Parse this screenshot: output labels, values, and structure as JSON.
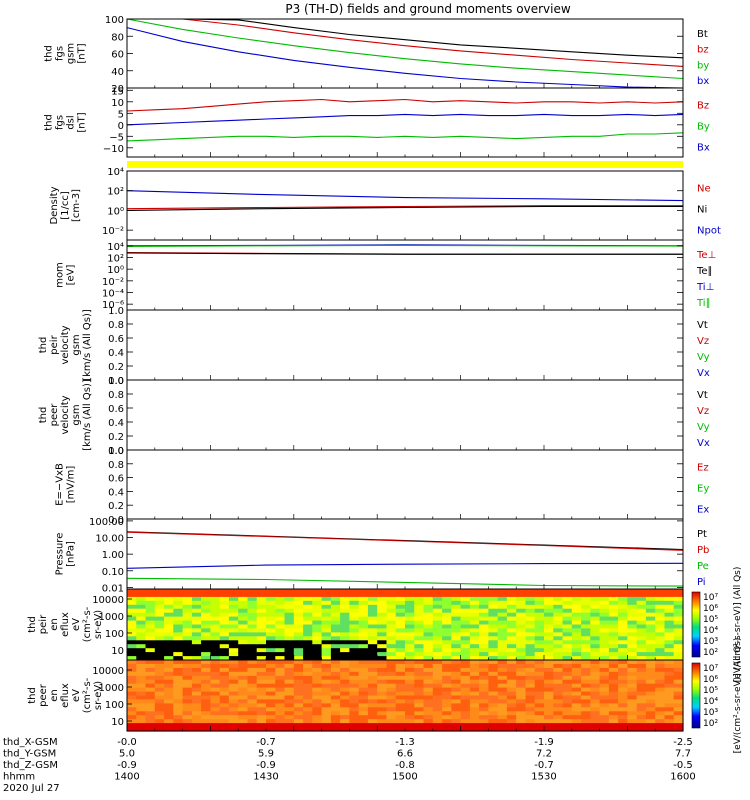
{
  "title": "P3 (TH-D) fields and ground moments overview",
  "chart_data": {
    "type": "line",
    "title": "P3 (TH-D) fields and ground moments overview",
    "panels": [
      {
        "id": "fgs-gsm",
        "ylabel": [
          "thd",
          "fgs",
          "gsm",
          "[nT]"
        ],
        "ylim": [
          20,
          100
        ],
        "yscale": "linear",
        "yticks": [
          "100",
          "80",
          "60",
          "40",
          "20"
        ],
        "legend": [
          {
            "label": "Bt",
            "color": "#000000"
          },
          {
            "label": "bz",
            "color": "#cc0000"
          },
          {
            "label": "by",
            "color": "#00bb00"
          },
          {
            "label": "bx",
            "color": "#0000cc"
          }
        ],
        "series": [
          {
            "color": "#000000",
            "x": [
              1400,
              1420,
              1440,
              1460,
              1480,
              1500,
              1520,
              1540,
              1560,
              1580,
              1600
            ],
            "y": [
              122,
              110,
              99,
              90,
              82,
              76,
              70,
              66,
              62,
              58,
              55
            ]
          },
          {
            "color": "#cc0000",
            "x": [
              1400,
              1420,
              1440,
              1460,
              1480,
              1500,
              1520,
              1540,
              1560,
              1580,
              1600
            ],
            "y": [
              116,
              104,
              93,
              84,
              76,
              69,
              63,
              58,
              53,
              49,
              45
            ]
          },
          {
            "color": "#00bb00",
            "x": [
              1400,
              1420,
              1440,
              1460,
              1480,
              1500,
              1520,
              1540,
              1560,
              1580,
              1600
            ],
            "y": [
              100,
              88,
              78,
              69,
              61,
              54,
              48,
              43,
              39,
              35,
              31
            ]
          },
          {
            "color": "#0000cc",
            "x": [
              1400,
              1420,
              1440,
              1460,
              1480,
              1500,
              1520,
              1540,
              1560,
              1580,
              1600
            ],
            "y": [
              90,
              74,
              62,
              52,
              44,
              37,
              31,
              27,
              24,
              21,
              19
            ]
          }
        ]
      },
      {
        "id": "fgs-dsl",
        "ylabel": [
          "thd",
          "fgs",
          "dsl",
          "[nT]"
        ],
        "ylim": [
          -14,
          16
        ],
        "yscale": "linear",
        "yticks": [
          "15",
          "10",
          "5",
          "0",
          "−5",
          "−10"
        ],
        "legend": [
          {
            "label": "Bz",
            "color": "#cc0000"
          },
          {
            "label": "By",
            "color": "#00bb00"
          },
          {
            "label": "Bx",
            "color": "#0000cc"
          }
        ],
        "series": [
          {
            "color": "#cc0000",
            "x": [
              1400,
              1410,
              1420,
              1430,
              1440,
              1450,
              1460,
              1470,
              1480,
              1490,
              1500,
              1510,
              1520,
              1530,
              1540,
              1550,
              1560,
              1570,
              1580,
              1590,
              1600
            ],
            "y": [
              6,
              6.5,
              7,
              8,
              9,
              10,
              10.5,
              11,
              10,
              10.5,
              11,
              10,
              10.5,
              10,
              9.5,
              10,
              10,
              9.5,
              10,
              9.5,
              10
            ]
          },
          {
            "color": "#0000cc",
            "x": [
              1400,
              1410,
              1420,
              1430,
              1440,
              1450,
              1460,
              1470,
              1480,
              1490,
              1500,
              1510,
              1520,
              1530,
              1540,
              1550,
              1560,
              1570,
              1580,
              1590,
              1600
            ],
            "y": [
              0,
              0.5,
              1,
              1.5,
              2,
              2.5,
              3,
              3.5,
              4,
              4,
              4.5,
              4,
              4.5,
              4,
              4,
              4.5,
              4,
              4,
              4.5,
              4,
              4.5
            ]
          },
          {
            "color": "#00bb00",
            "x": [
              1400,
              1410,
              1420,
              1430,
              1440,
              1450,
              1460,
              1470,
              1480,
              1490,
              1500,
              1510,
              1520,
              1530,
              1540,
              1550,
              1560,
              1570,
              1580,
              1590,
              1600
            ],
            "y": [
              -7,
              -6.5,
              -6,
              -5.5,
              -5,
              -5,
              -5.5,
              -5,
              -5,
              -5.5,
              -5,
              -5.5,
              -5,
              -5.5,
              -6,
              -5.5,
              -5,
              -5,
              -4,
              -4,
              -3.5
            ]
          }
        ]
      },
      {
        "id": "density",
        "ylabel": [
          "Density",
          "[1/cc]",
          "[cm-3]"
        ],
        "ylim": [
          0.001,
          10000
        ],
        "yscale": "log",
        "yticks": [
          "10⁴",
          "10²",
          "10⁰",
          "10⁻²"
        ],
        "legend": [
          {
            "label": "Ne",
            "color": "#cc0000"
          },
          {
            "label": "Ni",
            "color": "#000000"
          },
          {
            "label": "Npot",
            "color": "#0000cc"
          }
        ],
        "series": [
          {
            "color": "#0000cc",
            "x": [
              1400,
              1450,
              1500,
              1550,
              1600
            ],
            "y": [
              100,
              40,
              20,
              15,
              10
            ]
          },
          {
            "color": "#cc0000",
            "x": [
              1400,
              1450,
              1500,
              1550,
              1600
            ],
            "y": [
              1.5,
              2,
              2.5,
              3,
              3
            ]
          },
          {
            "color": "#000000",
            "x": [
              1400,
              1450,
              1500,
              1550,
              1600
            ],
            "y": [
              1,
              1.5,
              2,
              2.5,
              2.5
            ]
          }
        ]
      },
      {
        "id": "temperature",
        "ylabel": [
          "mom",
          "[eV]"
        ],
        "ylim": [
          1e-07,
          100000
        ],
        "yscale": "log",
        "yticks": [
          "10⁴",
          "10²",
          "10⁰",
          "10⁻²",
          "10⁻⁴",
          "10⁻⁶"
        ],
        "legend": [
          {
            "label": "Te⊥",
            "color": "#cc0000"
          },
          {
            "label": "Te∥",
            "color": "#000000"
          },
          {
            "label": "Ti⊥",
            "color": "#0000cc"
          },
          {
            "label": "Ti∥",
            "color": "#00bb00"
          }
        ],
        "series": [
          {
            "color": "#0000cc",
            "x": [
              1400,
              1450,
              1500,
              1550,
              1600
            ],
            "y": [
              10000,
              12000,
              15000,
              12000,
              10000
            ]
          },
          {
            "color": "#00bb00",
            "x": [
              1400,
              1450,
              1500,
              1550,
              1600
            ],
            "y": [
              8000,
              10000,
              12000,
              10000,
              9000
            ]
          },
          {
            "color": "#cc0000",
            "x": [
              1400,
              1450,
              1500,
              1550,
              1600
            ],
            "y": [
              700,
              500,
              400,
              400,
              400
            ]
          },
          {
            "color": "#000000",
            "x": [
              1400,
              1450,
              1500,
              1550,
              1600
            ],
            "y": [
              600,
              450,
              350,
              350,
              350
            ]
          }
        ]
      },
      {
        "id": "peir-velocity",
        "ylabel": [
          "thd",
          "peir",
          "velocity",
          "gsm",
          "[km/s (All Qs)]"
        ],
        "ylim": [
          0,
          1
        ],
        "yscale": "linear",
        "yticks": [
          "1.0",
          "0.8",
          "0.6",
          "0.4",
          "0.2",
          "0.0"
        ],
        "legend": [
          {
            "label": "Vt",
            "color": "#000000"
          },
          {
            "label": "Vz",
            "color": "#cc0000"
          },
          {
            "label": "Vy",
            "color": "#00bb00"
          },
          {
            "label": "Vx",
            "color": "#0000cc"
          }
        ],
        "series": []
      },
      {
        "id": "peer-velocity",
        "ylabel": [
          "thd",
          "peer",
          "velocity",
          "gsm",
          "[km/s (All Qs)]"
        ],
        "ylim": [
          0,
          1
        ],
        "yscale": "linear",
        "yticks": [
          "1.0",
          "0.8",
          "0.6",
          "0.4",
          "0.2",
          "0.0"
        ],
        "legend": [
          {
            "label": "Vt",
            "color": "#000000"
          },
          {
            "label": "Vz",
            "color": "#cc0000"
          },
          {
            "label": "Vy",
            "color": "#00bb00"
          },
          {
            "label": "Vx",
            "color": "#0000cc"
          }
        ],
        "series": []
      },
      {
        "id": "efield",
        "ylabel": [
          "E=−VxB",
          "[mV/m]"
        ],
        "ylim": [
          0,
          1
        ],
        "yscale": "linear",
        "yticks": [
          "1.0",
          "0.8",
          "0.6",
          "0.4",
          "0.2",
          "0.0"
        ],
        "legend": [
          {
            "label": "Ez",
            "color": "#cc0000"
          },
          {
            "label": "Ey",
            "color": "#00bb00"
          },
          {
            "label": "Ex",
            "color": "#0000cc"
          }
        ],
        "series": []
      },
      {
        "id": "pressure",
        "ylabel": [
          "Pressure",
          "[nPa]"
        ],
        "ylim": [
          0.008,
          130
        ],
        "yscale": "log",
        "yticks": [
          "100.00",
          "10.00",
          "1.00",
          "0.10",
          "0.01"
        ],
        "legend": [
          {
            "label": "Pt",
            "color": "#000000"
          },
          {
            "label": "Pb",
            "color": "#cc0000"
          },
          {
            "label": "Pe",
            "color": "#00bb00"
          },
          {
            "label": "Pi",
            "color": "#0000cc"
          }
        ],
        "series": [
          {
            "color": "#000000",
            "x": [
              1400,
              1450,
              1500,
              1550,
              1600
            ],
            "y": [
              22,
              12,
              6.5,
              3.5,
              1.9
            ]
          },
          {
            "color": "#cc0000",
            "x": [
              1400,
              1450,
              1500,
              1550,
              1600
            ],
            "y": [
              21,
              11.5,
              6.2,
              3.3,
              1.7
            ]
          },
          {
            "color": "#0000cc",
            "x": [
              1400,
              1450,
              1500,
              1550,
              1600
            ],
            "y": [
              0.14,
              0.22,
              0.25,
              0.27,
              0.28
            ]
          },
          {
            "color": "#00bb00",
            "x": [
              1400,
              1450,
              1500,
              1550,
              1600
            ],
            "y": [
              0.035,
              0.03,
              0.02,
              0.013,
              0.012
            ]
          }
        ]
      },
      {
        "id": "peir-eflux",
        "type": "heatmap",
        "ylabel": [
          "thd",
          "peir",
          "en",
          "eflux",
          "eV",
          "(cm²-s-",
          "sr-eV)"
        ],
        "yticks": [
          "10000",
          "1000",
          "100",
          "10"
        ],
        "colorbar_label": "[eV/(cm²-s-sr-eV)] (All Qs)",
        "colorbar_ticks": [
          "10⁷",
          "10⁶",
          "10⁵",
          "10⁴",
          "10³",
          "10²"
        ]
      },
      {
        "id": "peer-eflux",
        "type": "heatmap",
        "ylabel": [
          "thd",
          "peer",
          "en",
          "eflux",
          "eV",
          "(cm²-s-",
          "sr-eV)"
        ],
        "yticks": [
          "10000",
          "1000",
          "100",
          "10"
        ],
        "colorbar_label": "[eV/(cm²-s-sr-eV)] (All Qs)",
        "colorbar_ticks": [
          "10⁷",
          "10⁶",
          "10⁵",
          "10⁴",
          "10³",
          "10²"
        ]
      }
    ],
    "xaxis": {
      "rows": [
        {
          "label": "thd_X-GSM",
          "values": [
            "-0.0",
            "-0.7",
            "-1.3",
            "-1.9",
            "-2.5"
          ]
        },
        {
          "label": "thd_Y-GSM",
          "values": [
            "5.0",
            "5.9",
            "6.6",
            "7.2",
            "7.7"
          ]
        },
        {
          "label": "thd_Z-GSM",
          "values": [
            "-0.9",
            "-0.9",
            "-0.8",
            "-0.7",
            "-0.5"
          ]
        },
        {
          "label": "hhmm",
          "values": [
            "1400",
            "1430",
            "1500",
            "1530",
            "1600"
          ]
        }
      ],
      "date": "2020 Jul 27"
    }
  }
}
